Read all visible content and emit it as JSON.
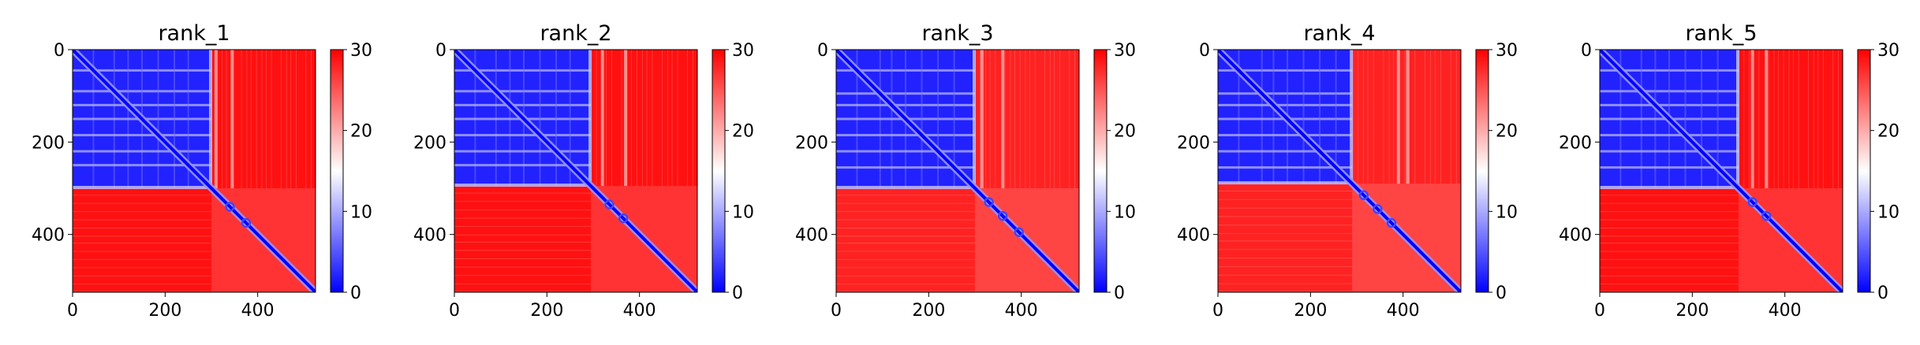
{
  "figure": {
    "colors": {
      "low": "#0000ff",
      "mid": "#ffffff",
      "high": "#ff0000",
      "frame": "#000000"
    }
  },
  "chart_data": [
    {
      "type": "heatmap",
      "title": "rank_1",
      "x_ticks": [
        0,
        200,
        400
      ],
      "y_ticks": [
        0,
        200,
        400
      ],
      "xlim": [
        0,
        525
      ],
      "ylim": [
        525,
        0
      ],
      "colorbar": {
        "range": [
          0,
          30
        ],
        "ticks": [
          0,
          10,
          20,
          30
        ]
      },
      "block_boundary": 300,
      "stripe_rows": [
        45,
        90,
        120,
        150,
        185,
        220,
        250
      ],
      "stripe_cols": [
        310,
        345
      ],
      "diagonal_beads": [
        340,
        375
      ],
      "upper_left_value": 2,
      "cross_block_value": 29,
      "lower_right_value": 27
    },
    {
      "type": "heatmap",
      "title": "rank_2",
      "x_ticks": [
        0,
        200,
        400
      ],
      "y_ticks": [
        0,
        200,
        400
      ],
      "xlim": [
        0,
        525
      ],
      "ylim": [
        525,
        0
      ],
      "colorbar": {
        "range": [
          0,
          30
        ],
        "ticks": [
          0,
          10,
          20,
          30
        ]
      },
      "block_boundary": 295,
      "stripe_rows": [
        45,
        90,
        120,
        150,
        185,
        220,
        250
      ],
      "stripe_cols": [
        320,
        370
      ],
      "diagonal_beads": [
        335,
        365
      ],
      "upper_left_value": 2,
      "cross_block_value": 29,
      "lower_right_value": 27
    },
    {
      "type": "heatmap",
      "title": "rank_3",
      "x_ticks": [
        0,
        200,
        400
      ],
      "y_ticks": [
        0,
        200,
        400
      ],
      "xlim": [
        0,
        525
      ],
      "ylim": [
        525,
        0
      ],
      "colorbar": {
        "range": [
          0,
          30
        ],
        "ticks": [
          0,
          10,
          20,
          30
        ]
      },
      "block_boundary": 300,
      "stripe_rows": [
        45,
        95,
        120,
        150,
        185,
        220,
        255
      ],
      "stripe_cols": [
        315,
        360
      ],
      "diagonal_beads": [
        330,
        360,
        395
      ],
      "upper_left_value": 2,
      "cross_block_value": 28,
      "lower_right_value": 26
    },
    {
      "type": "heatmap",
      "title": "rank_4",
      "x_ticks": [
        0,
        200,
        400
      ],
      "y_ticks": [
        0,
        200,
        400
      ],
      "xlim": [
        0,
        525
      ],
      "ylim": [
        525,
        0
      ],
      "colorbar": {
        "range": [
          0,
          30
        ],
        "ticks": [
          0,
          10,
          20,
          30
        ]
      },
      "block_boundary": 290,
      "stripe_rows": [
        45,
        95,
        120,
        150,
        185,
        220,
        255
      ],
      "stripe_cols": [
        390,
        410
      ],
      "diagonal_beads": [
        315,
        345,
        375
      ],
      "upper_left_value": 2,
      "cross_block_value": 28,
      "lower_right_value": 26
    },
    {
      "type": "heatmap",
      "title": "rank_5",
      "x_ticks": [
        0,
        200,
        400
      ],
      "y_ticks": [
        0,
        200,
        400
      ],
      "xlim": [
        0,
        525
      ],
      "ylim": [
        525,
        0
      ],
      "colorbar": {
        "range": [
          0,
          30
        ],
        "ticks": [
          0,
          10,
          20,
          30
        ]
      },
      "block_boundary": 300,
      "stripe_rows": [
        45,
        90,
        120,
        150,
        185,
        220,
        255
      ],
      "stripe_cols": [
        330,
        360
      ],
      "diagonal_beads": [
        330,
        360
      ],
      "upper_left_value": 2,
      "cross_block_value": 29,
      "lower_right_value": 27
    }
  ]
}
